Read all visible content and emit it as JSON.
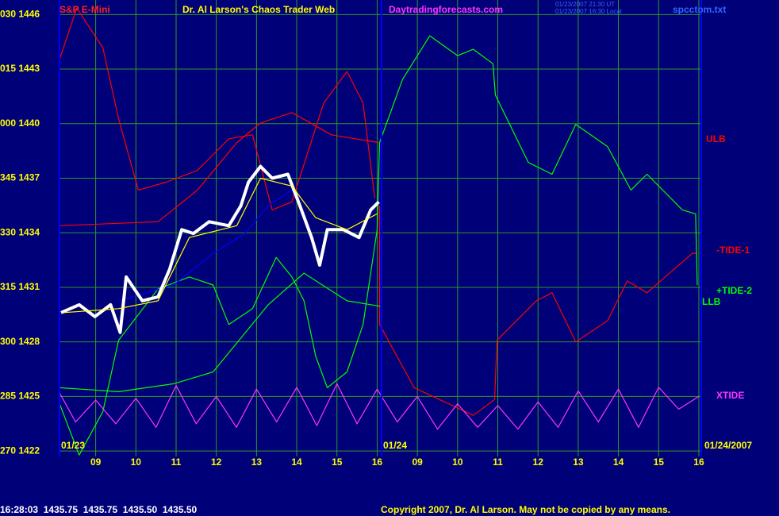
{
  "chart_data": {
    "type": "line",
    "title": "Dr. Al Larson's Chaos Trader Web",
    "instrument": "S&P E-Mini",
    "site": "Daytradingforecasts.com",
    "timestamps": [
      "01/23/2007 21:30 UT",
      "01/23/2007 16:30 Local"
    ],
    "file": "spcctom.txt",
    "dates": [
      "01/23",
      "01/24",
      "01/24/2007"
    ],
    "status": "16:28:03  1435.75  1435.75  1435.50  1435.50",
    "copyright": "Copyright 2007, Dr. Al Larson. May not be copied by any means.",
    "grid": true,
    "xlim": [
      8.1,
      24.06
    ],
    "ylim": [
      1421.7,
      1446.8
    ],
    "xticks": [
      {
        "value": 9,
        "label": "09"
      },
      10,
      11,
      12,
      13,
      14,
      15,
      16,
      {
        "value": 17,
        "label": "09"
      },
      {
        "value": 18,
        "label": "10"
      },
      {
        "value": 19,
        "label": "11"
      },
      {
        "value": 20,
        "label": "12"
      },
      {
        "value": 21,
        "label": "13"
      },
      {
        "value": 22,
        "label": "14"
      },
      {
        "value": 23,
        "label": "15"
      },
      {
        "value": 24,
        "label": "16"
      }
    ],
    "yticks": [
      {
        "value": 1446,
        "label": "030 1446"
      },
      {
        "value": 1443,
        "label": "015 1443"
      },
      {
        "value": 1440,
        "label": "000 1440"
      },
      {
        "value": 1437,
        "label": "345 1437"
      },
      {
        "value": 1434,
        "label": "330 1434"
      },
      {
        "value": 1431,
        "label": "315 1431"
      },
      {
        "value": 1428,
        "label": "300 1428"
      },
      {
        "value": 1425,
        "label": "285 1425"
      },
      {
        "value": 1422,
        "label": "270 1422"
      }
    ],
    "series": [
      {
        "color": "#ff0000",
        "x": [
          8.1,
          8.53,
          9.18,
          9.57,
          10.06,
          10.75,
          11.53,
          12.31,
          12.9,
          13.39,
          13.88,
          14.67,
          15.25,
          15.65,
          15.94
        ],
        "values": [
          1443.52,
          1446.35,
          1444.17,
          1440.26,
          1436.35,
          1436.78,
          1437.43,
          1439.17,
          1439.39,
          1435.26,
          1435.7,
          1441.13,
          1442.87,
          1441.13,
          1435.91
        ]
      },
      {
        "name": "ULB",
        "color": "#ff0000",
        "x": [
          8.1,
          10.55,
          11.53,
          12.51,
          13.1,
          13.88,
          14.86,
          16.04
        ],
        "values": [
          1434.39,
          1434.61,
          1436.35,
          1438.96,
          1440.04,
          1440.61,
          1439.39,
          1438.96
        ]
      },
      {
        "name": "-TIDE-1",
        "color": "#ff0000",
        "x": [
          16.06,
          16.06,
          16.92,
          18.39,
          18.92,
          18.98,
          19.96,
          20.35,
          20.94,
          21.73,
          22.22,
          22.71,
          23.84,
          23.96
        ],
        "values": [
          1435.48,
          1428.96,
          1425.48,
          1423.96,
          1424.83,
          1428.09,
          1430.26,
          1430.7,
          1428.0,
          1429.17,
          1431.35,
          1430.7,
          1432.87,
          1432.87
        ]
      },
      {
        "name": "+TIDE-2",
        "color": "#00ff00",
        "x": [
          8.1,
          8.59,
          9.18,
          9.57,
          10.55,
          11.33,
          11.92,
          12.31,
          12.9,
          13.49,
          13.88,
          14.18,
          14.47,
          14.76,
          15.25,
          15.65,
          16.0,
          16.06,
          16.63,
          17.31,
          18.0,
          18.39,
          18.88,
          18.94,
          19.76,
          20.35,
          20.94,
          21.73,
          22.31,
          22.71,
          23.59,
          23.92,
          23.96
        ],
        "values": [
          1424.61,
          1421.78,
          1424.17,
          1428.09,
          1430.91,
          1431.57,
          1431.13,
          1428.96,
          1429.83,
          1432.65,
          1431.57,
          1430.26,
          1427.22,
          1425.48,
          1426.35,
          1428.96,
          1434.17,
          1438.96,
          1442.43,
          1444.83,
          1443.74,
          1444.09,
          1443.3,
          1441.57,
          1437.87,
          1437.22,
          1439.96,
          1438.74,
          1436.35,
          1437.22,
          1435.26,
          1435.04,
          1431.13
        ]
      },
      {
        "name": "LLB",
        "color": "#00ff00",
        "x": [
          8.1,
          9.57,
          10.94,
          11.92,
          13.29,
          14.18,
          15.25,
          16.08
        ],
        "values": [
          1425.48,
          1425.26,
          1425.7,
          1426.35,
          1430.04,
          1431.78,
          1430.26,
          1429.96
        ]
      },
      {
        "name": "XTIDE",
        "color": "#ff33ff",
        "x": [
          8.1,
          8.5,
          9.0,
          9.5,
          10.0,
          10.5,
          11.0,
          11.5,
          12.0,
          12.5,
          13.0,
          13.5,
          14.0,
          14.5,
          15.0,
          15.5,
          16.0,
          16.5,
          17.0,
          17.5,
          18.0,
          18.5,
          19.0,
          19.5,
          20.0,
          20.5,
          21.0,
          21.5,
          22.0,
          22.5,
          23.0,
          23.5,
          24.0
        ],
        "values": [
          1425.2,
          1423.6,
          1424.8,
          1423.5,
          1424.9,
          1423.3,
          1425.6,
          1423.5,
          1425.0,
          1423.3,
          1425.4,
          1423.6,
          1425.5,
          1423.4,
          1425.7,
          1423.5,
          1425.4,
          1423.6,
          1425.0,
          1423.2,
          1424.6,
          1423.3,
          1424.5,
          1423.2,
          1424.7,
          1423.3,
          1425.3,
          1423.6,
          1425.4,
          1423.3,
          1425.5,
          1424.3,
          1425.0
        ]
      },
      {
        "color": "#0000ff",
        "x": [
          9.57,
          10.94,
          11.92,
          12.71,
          13.29,
          13.88,
          14.08
        ],
        "values": [
          1430.26,
          1431.13,
          1432.87,
          1433.96,
          1435.48,
          1436.35,
          1435.91
        ]
      },
      {
        "color": "#ffffff",
        "x": [
          8.14,
          8.59,
          8.98,
          9.37,
          9.61,
          9.76,
          10.16,
          10.55,
          10.84,
          11.14,
          11.43,
          11.82,
          12.31,
          12.61,
          12.8,
          13.1,
          13.39,
          13.78,
          14.08,
          14.37,
          14.57,
          14.76,
          15.16,
          15.55,
          15.84,
          16.04
        ],
        "values": [
          1429.61,
          1430.04,
          1429.39,
          1430.04,
          1428.52,
          1431.57,
          1430.26,
          1430.48,
          1432.0,
          1434.17,
          1433.96,
          1434.61,
          1434.39,
          1435.48,
          1436.78,
          1437.65,
          1437.0,
          1437.22,
          1435.48,
          1433.74,
          1432.22,
          1434.17,
          1434.17,
          1433.74,
          1435.26,
          1435.7
        ]
      },
      {
        "color": "#ffff00",
        "x": [
          8.2,
          9.57,
          10.55,
          11.33,
          12.51,
          13.1,
          13.88,
          14.47,
          15.25,
          16.0
        ],
        "values": [
          1429.61,
          1429.83,
          1430.26,
          1433.74,
          1434.39,
          1437.0,
          1436.57,
          1434.83,
          1434.17,
          1435.04
        ]
      }
    ]
  }
}
